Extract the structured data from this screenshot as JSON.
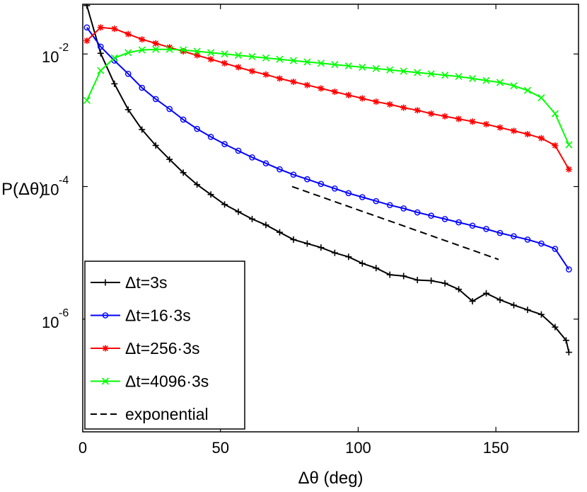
{
  "chart_data": {
    "type": "line",
    "title": "",
    "xlabel": "Δθ (deg)",
    "ylabel": "P(Δθ)",
    "xlim": [
      0,
      180
    ],
    "ylim": [
      -7.7,
      -1.25
    ],
    "yscale": "log",
    "x_ticks": [
      {
        "value": 0,
        "label": "0"
      },
      {
        "value": 50,
        "label": "50"
      },
      {
        "value": 100,
        "label": "100"
      },
      {
        "value": 150,
        "label": "150"
      }
    ],
    "y_ticks": [
      {
        "exp": -2,
        "label": "10",
        "sup": "-2"
      },
      {
        "exp": -4,
        "label": "10",
        "sup": "-4"
      },
      {
        "exp": -6,
        "label": "10",
        "sup": "-6"
      }
    ],
    "grid": false,
    "legend_position": "bottom-left",
    "note": "y values are log10 of P(Δθ)",
    "series": [
      {
        "name": "Δt=3s",
        "color": "#000000",
        "marker": "plus",
        "x": [
          1.5,
          6.5,
          11.5,
          16.5,
          21.5,
          26.5,
          31.5,
          36.5,
          41.5,
          46.5,
          51.5,
          56.5,
          61.5,
          66.5,
          71.5,
          76.5,
          81.5,
          86.5,
          91.5,
          96.5,
          101.5,
          106.5,
          111.5,
          116.5,
          121.5,
          126.5,
          131.5,
          136.5,
          141.5,
          146.5,
          151.5,
          156.5,
          161.5,
          166.5,
          171.5,
          175.5,
          176.5
        ],
        "y": [
          -1.27,
          -1.99,
          -2.45,
          -2.84,
          -3.14,
          -3.38,
          -3.59,
          -3.79,
          -3.97,
          -4.12,
          -4.27,
          -4.38,
          -4.49,
          -4.58,
          -4.69,
          -4.8,
          -4.86,
          -4.92,
          -5.0,
          -5.06,
          -5.16,
          -5.23,
          -5.33,
          -5.35,
          -5.41,
          -5.42,
          -5.46,
          -5.55,
          -5.73,
          -5.61,
          -5.71,
          -5.79,
          -5.86,
          -5.93,
          -6.12,
          -6.32,
          -6.5
        ]
      },
      {
        "name": "Δt=16·3s",
        "color": "#0000ff",
        "marker": "circle",
        "x": [
          1.5,
          6.5,
          11.5,
          16.5,
          21.5,
          26.5,
          31.5,
          36.5,
          41.5,
          46.5,
          51.5,
          56.5,
          61.5,
          66.5,
          71.5,
          76.5,
          81.5,
          86.5,
          91.5,
          96.5,
          101.5,
          106.5,
          111.5,
          116.5,
          121.5,
          126.5,
          131.5,
          136.5,
          141.5,
          146.5,
          151.5,
          156.5,
          161.5,
          166.5,
          171.5,
          176.5
        ],
        "y": [
          -1.6,
          -1.89,
          -2.1,
          -2.3,
          -2.51,
          -2.68,
          -2.83,
          -2.99,
          -3.13,
          -3.25,
          -3.36,
          -3.46,
          -3.56,
          -3.65,
          -3.74,
          -3.82,
          -3.89,
          -3.96,
          -4.03,
          -4.1,
          -4.16,
          -4.22,
          -4.28,
          -4.33,
          -4.39,
          -4.44,
          -4.49,
          -4.54,
          -4.59,
          -4.64,
          -4.7,
          -4.75,
          -4.8,
          -4.86,
          -4.94,
          -5.25
        ]
      },
      {
        "name": "Δt=256·3s",
        "color": "#ff0000",
        "marker": "star",
        "x": [
          1.5,
          6.5,
          11.5,
          16.5,
          21.5,
          26.5,
          31.5,
          36.5,
          41.5,
          46.5,
          51.5,
          56.5,
          61.5,
          66.5,
          71.5,
          76.5,
          81.5,
          86.5,
          91.5,
          96.5,
          101.5,
          106.5,
          111.5,
          116.5,
          121.5,
          126.5,
          131.5,
          136.5,
          141.5,
          146.5,
          151.5,
          156.5,
          161.5,
          166.5,
          171.5,
          176.5
        ],
        "y": [
          -1.8,
          -1.6,
          -1.62,
          -1.7,
          -1.78,
          -1.84,
          -1.9,
          -1.96,
          -2.02,
          -2.08,
          -2.14,
          -2.2,
          -2.26,
          -2.31,
          -2.37,
          -2.42,
          -2.47,
          -2.52,
          -2.57,
          -2.62,
          -2.67,
          -2.72,
          -2.76,
          -2.81,
          -2.85,
          -2.9,
          -2.94,
          -2.98,
          -3.02,
          -3.06,
          -3.11,
          -3.16,
          -3.21,
          -3.27,
          -3.38,
          -3.74
        ]
      },
      {
        "name": "Δt=4096·3s",
        "color": "#00ff00",
        "marker": "cross",
        "x": [
          1.5,
          6.5,
          11.5,
          16.5,
          21.5,
          26.5,
          31.5,
          36.5,
          41.5,
          46.5,
          51.5,
          56.5,
          61.5,
          66.5,
          71.5,
          76.5,
          81.5,
          86.5,
          91.5,
          96.5,
          101.5,
          106.5,
          111.5,
          116.5,
          121.5,
          126.5,
          131.5,
          136.5,
          141.5,
          146.5,
          151.5,
          156.5,
          161.5,
          166.5,
          171.5,
          176.5
        ],
        "y": [
          -2.7,
          -2.25,
          -2.06,
          -1.98,
          -1.94,
          -1.93,
          -1.93,
          -1.94,
          -1.96,
          -1.98,
          -2.0,
          -2.02,
          -2.04,
          -2.06,
          -2.08,
          -2.1,
          -2.12,
          -2.14,
          -2.16,
          -2.18,
          -2.2,
          -2.22,
          -2.24,
          -2.26,
          -2.28,
          -2.3,
          -2.32,
          -2.34,
          -2.37,
          -2.4,
          -2.43,
          -2.48,
          -2.55,
          -2.66,
          -2.9,
          -3.37
        ]
      }
    ],
    "reference_line": {
      "name": "exponential",
      "color": "#000000",
      "style": "dashed",
      "x": [
        76,
        151
      ],
      "y": [
        -4.0,
        -5.1
      ]
    }
  }
}
